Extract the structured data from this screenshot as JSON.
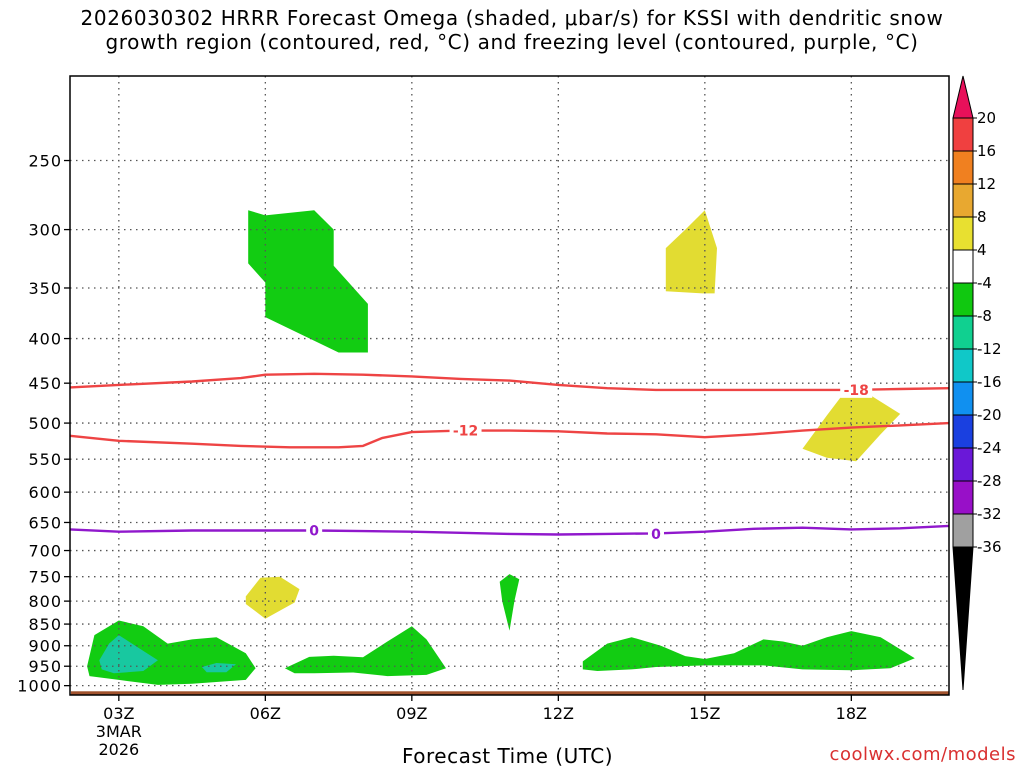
{
  "title_line1": "2026030302 HRRR Forecast Omega (shaded, μbar/s) for KSSI with dendritic snow",
  "title_line2": "growth region (contoured, red, °C) and freezing level (contoured, purple, °C)",
  "xlabel": "Forecast Time (UTC)",
  "credit": "coolwx.com/models",
  "chart_data": {
    "type": "time-height contour",
    "x_unit": "hour UTC, 3 Mar 2026",
    "xlim": [
      2.0,
      20.0
    ],
    "x_ticks": [
      {
        "hour": 3,
        "label": "03Z",
        "sub1": "3MAR",
        "sub2": "2026"
      },
      {
        "hour": 6,
        "label": "06Z"
      },
      {
        "hour": 9,
        "label": "09Z"
      },
      {
        "hour": 12,
        "label": "12Z"
      },
      {
        "hour": 15,
        "label": "15Z"
      },
      {
        "hour": 18,
        "label": "18Z"
      }
    ],
    "y_unit": "hPa",
    "y_scale": "log",
    "ylim": [
      1025,
      200
    ],
    "y_ticks": [
      250,
      300,
      350,
      400,
      450,
      500,
      550,
      600,
      650,
      700,
      750,
      800,
      850,
      900,
      950,
      1000
    ],
    "grid": "dotted",
    "ground_band_hpa": [
      1015,
      1030
    ],
    "colorbar": {
      "levels": [
        "20",
        "16",
        "12",
        "8",
        "4",
        "-4",
        "-8",
        "-12",
        "-16",
        "-20",
        "-24",
        "-28",
        "-32",
        "-36"
      ],
      "colors": [
        "#e8105a",
        "#f04040",
        "#f08020",
        "#e8a830",
        "#e8e030",
        "#ffffff",
        "#10c810",
        "#10d090",
        "#10c8c8",
        "#1090f0",
        "#1a40e0",
        "#6a18d8",
        "#9810c8",
        "#a0a0a0",
        "#000000"
      ]
    },
    "shaded_regions": [
      {
        "omega_bin": "-8 to -4",
        "color": "#12cc12",
        "points": [
          [
            5.65,
            285
          ],
          [
            6.0,
            289
          ],
          [
            7.0,
            285
          ],
          [
            7.4,
            300
          ],
          [
            7.4,
            330
          ],
          [
            8.1,
            365
          ],
          [
            8.1,
            415
          ],
          [
            7.5,
            415
          ],
          [
            6.0,
            378
          ],
          [
            6.0,
            345
          ],
          [
            5.65,
            328
          ]
        ]
      },
      {
        "omega_bin": "4 to 8",
        "color": "#e2dc32",
        "points": [
          [
            14.95,
            355
          ],
          [
            14.2,
            353
          ],
          [
            14.2,
            315
          ],
          [
            14.6,
            300
          ],
          [
            15.0,
            285
          ],
          [
            15.25,
            315
          ],
          [
            15.2,
            355
          ]
        ]
      },
      {
        "omega_bin": "4 to 8",
        "color": "#e2dc32",
        "points": [
          [
            17.0,
            535
          ],
          [
            17.5,
            490
          ],
          [
            18.0,
            450
          ],
          [
            19.0,
            488
          ],
          [
            18.6,
            515
          ],
          [
            18.1,
            553
          ],
          [
            17.5,
            548
          ]
        ]
      },
      {
        "omega_bin": "4 to 8",
        "color": "#e2dc32",
        "points": [
          [
            5.6,
            790
          ],
          [
            5.9,
            752
          ],
          [
            6.3,
            750
          ],
          [
            6.7,
            775
          ],
          [
            6.6,
            803
          ],
          [
            6.0,
            838
          ],
          [
            5.6,
            806
          ]
        ]
      },
      {
        "omega_bin": "-8 to -4",
        "color": "#12cc12",
        "points": [
          [
            10.8,
            760
          ],
          [
            11.0,
            745
          ],
          [
            11.2,
            755
          ],
          [
            11.1,
            800
          ],
          [
            11.0,
            865
          ],
          [
            10.85,
            800
          ]
        ]
      },
      {
        "omega_bin": "-8 to -4",
        "color": "#12cc12",
        "points": [
          [
            2.35,
            950
          ],
          [
            2.5,
            875
          ],
          [
            3.0,
            842
          ],
          [
            3.5,
            855
          ],
          [
            4.0,
            895
          ],
          [
            4.5,
            885
          ],
          [
            5.0,
            880
          ],
          [
            5.6,
            918
          ],
          [
            5.8,
            955
          ],
          [
            5.6,
            985
          ],
          [
            4.5,
            995
          ],
          [
            3.8,
            998
          ],
          [
            3.0,
            985
          ],
          [
            2.4,
            975
          ]
        ]
      },
      {
        "omega_bin": "-12 to -8",
        "color": "#18c8a0",
        "points": [
          [
            2.6,
            935
          ],
          [
            2.8,
            895
          ],
          [
            3.0,
            875
          ],
          [
            3.4,
            905
          ],
          [
            3.8,
            935
          ],
          [
            3.5,
            962
          ],
          [
            2.9,
            968
          ],
          [
            2.65,
            958
          ]
        ]
      },
      {
        "omega_bin": "-12 to -8",
        "color": "#18c8a0",
        "points": [
          [
            4.7,
            952
          ],
          [
            5.0,
            942
          ],
          [
            5.4,
            945
          ],
          [
            5.2,
            965
          ],
          [
            4.8,
            965
          ]
        ]
      },
      {
        "omega_bin": "-8 to -4",
        "color": "#12cc12",
        "points": [
          [
            6.4,
            955
          ],
          [
            6.9,
            927
          ],
          [
            7.4,
            924
          ],
          [
            8.0,
            928
          ],
          [
            8.5,
            890
          ],
          [
            9.0,
            855
          ],
          [
            9.3,
            885
          ],
          [
            9.7,
            955
          ],
          [
            9.3,
            972
          ],
          [
            8.5,
            975
          ],
          [
            7.8,
            966
          ],
          [
            7.0,
            968
          ],
          [
            6.6,
            968
          ]
        ]
      },
      {
        "omega_bin": "-8 to -4",
        "color": "#12cc12",
        "points": [
          [
            12.5,
            938
          ],
          [
            13.0,
            895
          ],
          [
            13.5,
            880
          ],
          [
            14.1,
            900
          ],
          [
            14.6,
            925
          ],
          [
            15.0,
            932
          ],
          [
            15.6,
            918
          ],
          [
            16.2,
            885
          ],
          [
            16.6,
            890
          ],
          [
            17.0,
            900
          ],
          [
            17.5,
            880
          ],
          [
            18.0,
            866
          ],
          [
            18.6,
            880
          ],
          [
            19.3,
            930
          ],
          [
            18.8,
            955
          ],
          [
            18.0,
            960
          ],
          [
            17.0,
            958
          ],
          [
            16.2,
            948
          ],
          [
            15.0,
            948
          ],
          [
            14.0,
            952
          ],
          [
            13.5,
            958
          ],
          [
            12.8,
            962
          ],
          [
            12.5,
            958
          ]
        ]
      }
    ],
    "contours": [
      {
        "kind": "dendritic",
        "level": -18,
        "label": "-18",
        "label_at": [
          18.1,
          458
        ],
        "color": "#ee4444",
        "points": [
          [
            2.0,
            455
          ],
          [
            3.0,
            452
          ],
          [
            4.5,
            448
          ],
          [
            5.5,
            444
          ],
          [
            6.0,
            440
          ],
          [
            7.0,
            439
          ],
          [
            8.0,
            440
          ],
          [
            9.0,
            442
          ],
          [
            10.0,
            445
          ],
          [
            11.0,
            447
          ],
          [
            12.0,
            452
          ],
          [
            13.0,
            456
          ],
          [
            14.0,
            458
          ],
          [
            15.0,
            458
          ],
          [
            16.0,
            458
          ],
          [
            17.0,
            458
          ],
          [
            18.0,
            458
          ],
          [
            19.0,
            457
          ],
          [
            20.0,
            456
          ]
        ]
      },
      {
        "kind": "dendritic",
        "level": -12,
        "label": "-12",
        "label_at": [
          10.1,
          510
        ],
        "color": "#ee4444",
        "points": [
          [
            2.0,
            517
          ],
          [
            3.0,
            524
          ],
          [
            4.5,
            528
          ],
          [
            5.5,
            531
          ],
          [
            6.5,
            533
          ],
          [
            7.5,
            533
          ],
          [
            8.0,
            531
          ],
          [
            8.4,
            520
          ],
          [
            9.0,
            512
          ],
          [
            10.0,
            510
          ],
          [
            11.0,
            510
          ],
          [
            12.0,
            511
          ],
          [
            13.0,
            514
          ],
          [
            14.0,
            515
          ],
          [
            15.0,
            519
          ],
          [
            16.0,
            515
          ],
          [
            17.0,
            510
          ],
          [
            18.0,
            506
          ],
          [
            19.0,
            503
          ],
          [
            20.0,
            500
          ]
        ]
      },
      {
        "kind": "freezing",
        "level": 0,
        "label": "0",
        "label_at": [
          14.0,
          670
        ],
        "color": "#9018cc",
        "points": [
          [
            2.0,
            662
          ],
          [
            3.0,
            666
          ],
          [
            4.5,
            664
          ],
          [
            6.0,
            664
          ],
          [
            7.0,
            664
          ],
          [
            8.0,
            665
          ],
          [
            9.0,
            666
          ],
          [
            10.0,
            668
          ],
          [
            11.0,
            670
          ],
          [
            12.0,
            671
          ],
          [
            13.0,
            670
          ],
          [
            14.0,
            669
          ],
          [
            15.0,
            666
          ],
          [
            16.0,
            661
          ],
          [
            17.0,
            659
          ],
          [
            18.0,
            662
          ],
          [
            19.0,
            660
          ],
          [
            20.0,
            656
          ]
        ]
      }
    ],
    "extra_labels": [
      {
        "text": "0",
        "at": [
          7.0,
          664
        ],
        "color": "#9018cc"
      }
    ]
  }
}
